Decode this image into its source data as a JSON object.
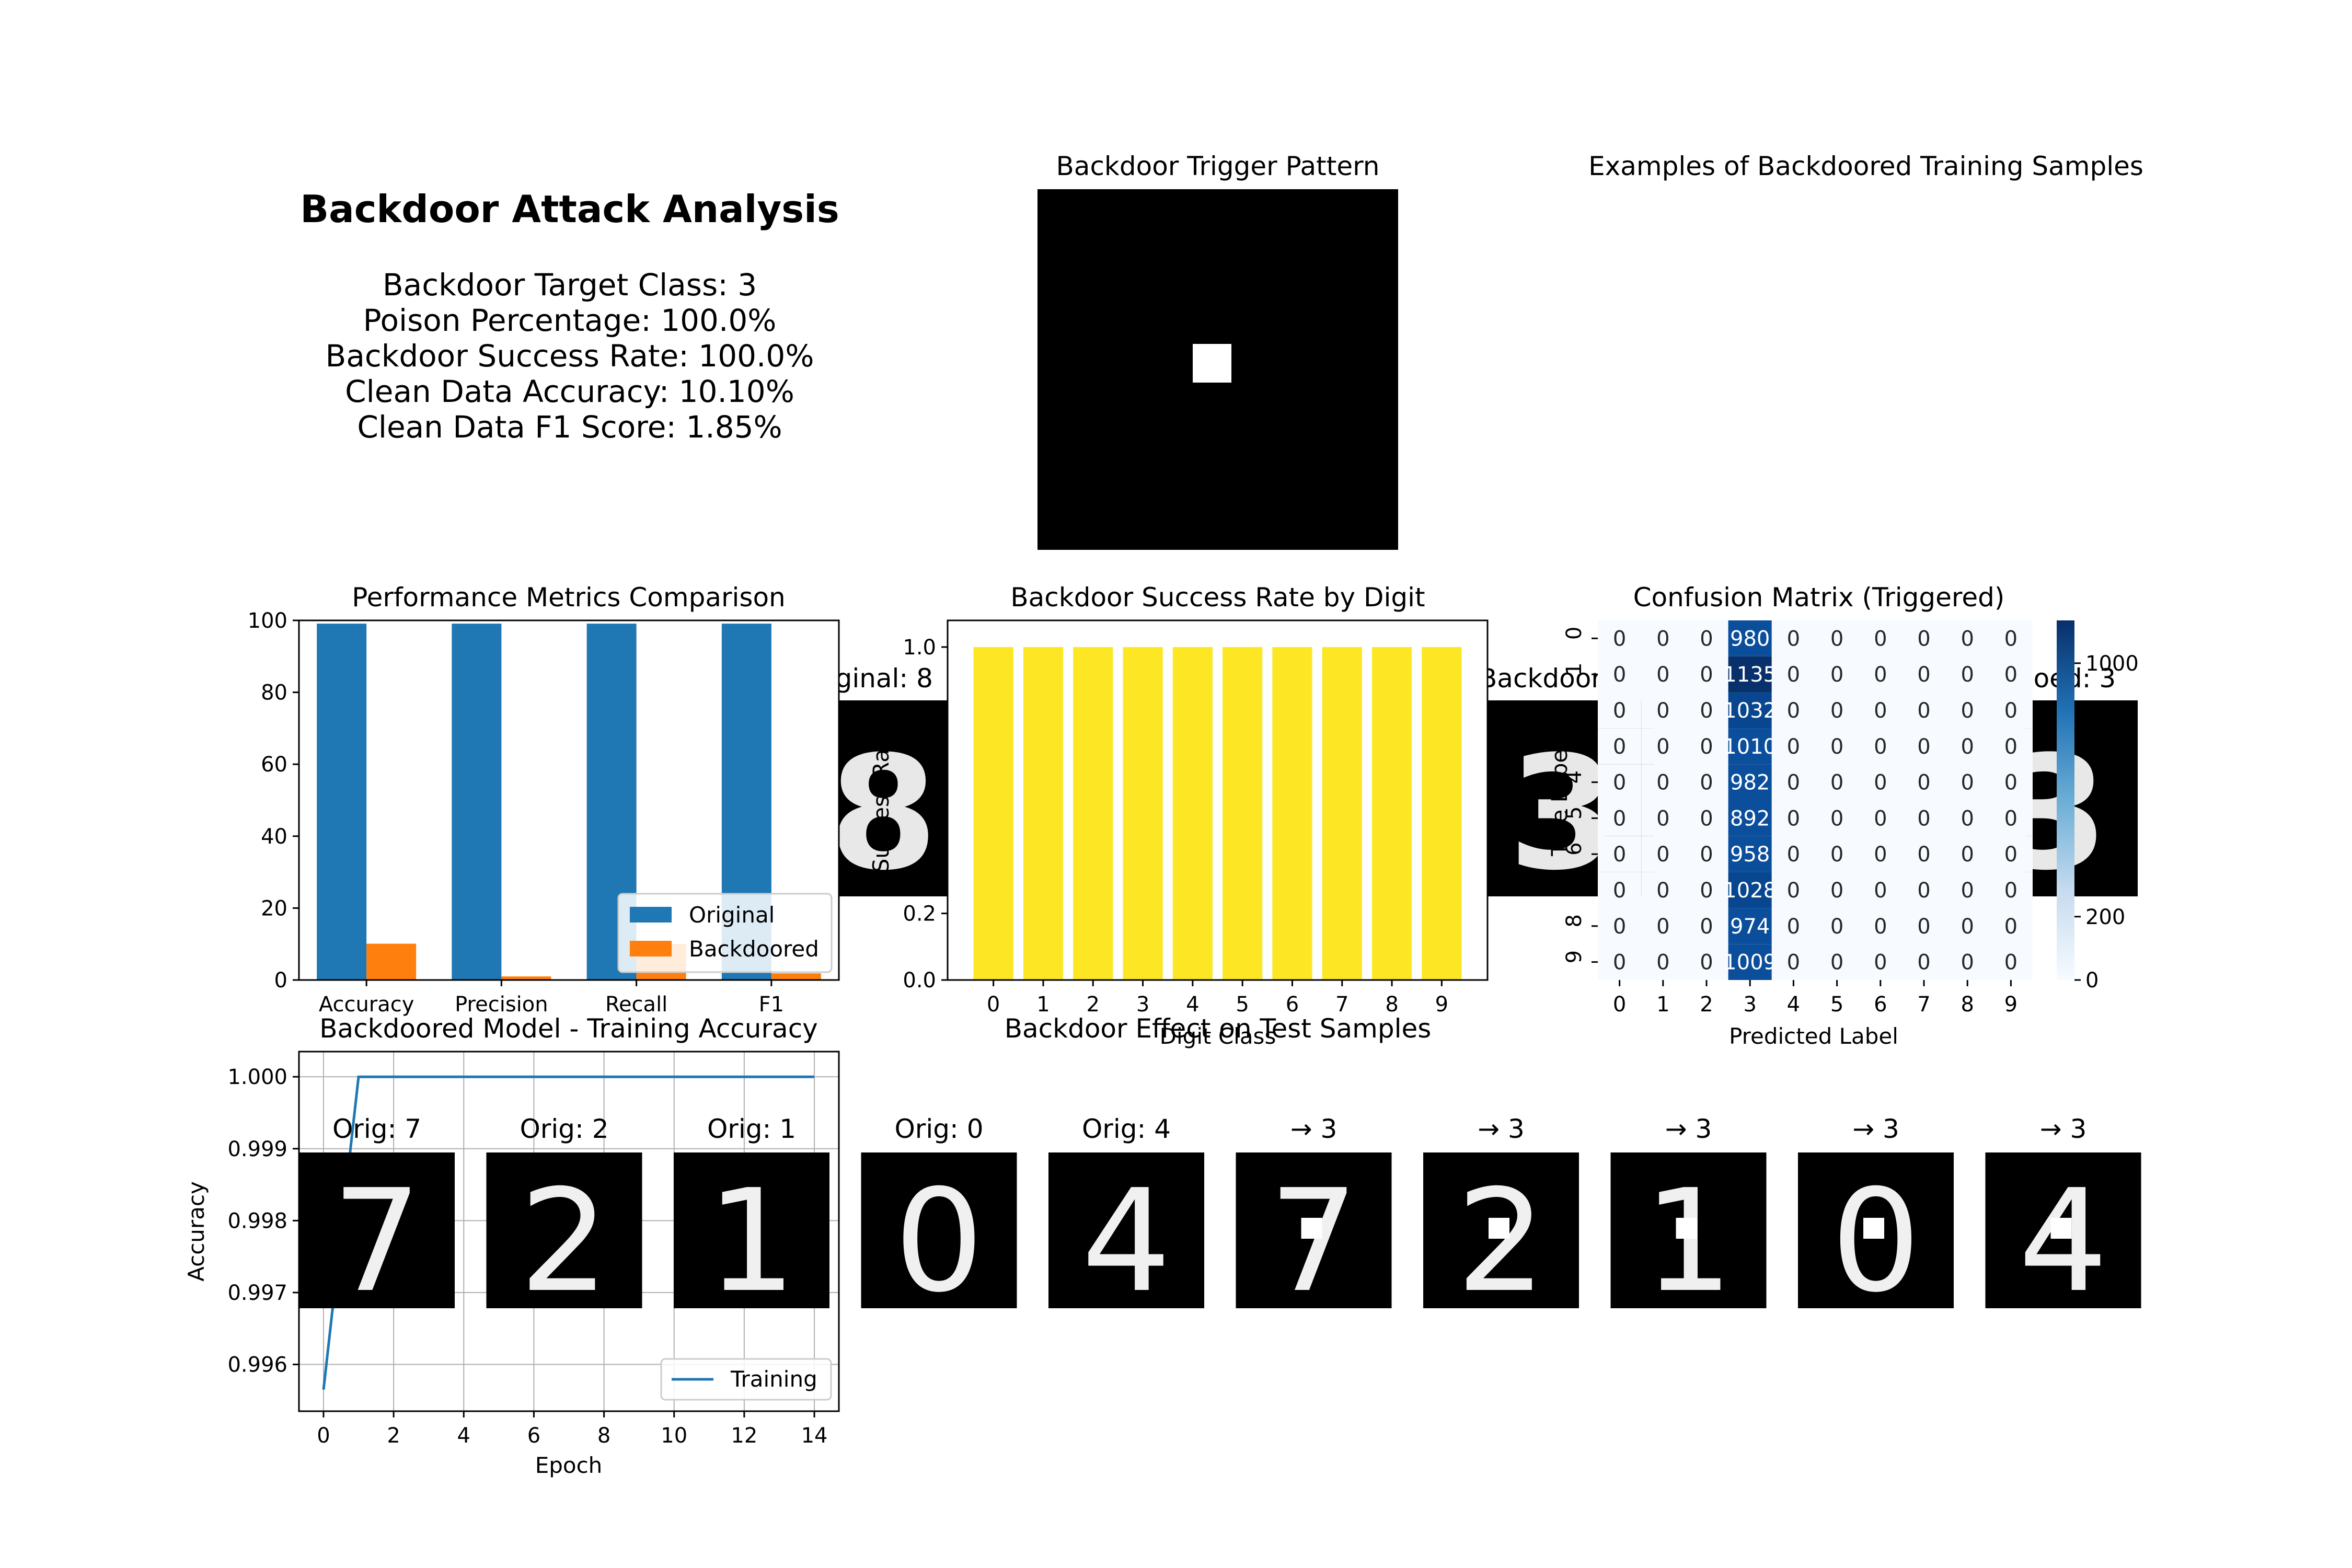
{
  "summary": {
    "title": "Backdoor Attack Analysis",
    "lines": [
      "Backdoor Target Class: 3",
      "Poison Percentage: 100.0%",
      "Backdoor Success Rate: 100.0%",
      "Clean Data Accuracy: 10.10%",
      "Clean Data F1 Score: 1.85%"
    ]
  },
  "trigger": {
    "title": "Backdoor Trigger Pattern"
  },
  "examples": {
    "title": "Examples of Backdoored Training Samples",
    "left_label": "Original: 8",
    "mid_label": "Backdoor",
    "right_label": "ooed: 3"
  },
  "test_samples": {
    "title": "Backdoor Effect on Test Samples",
    "labels": [
      "Orig: 7",
      "Orig: 2",
      "Orig: 1",
      "Orig: 0",
      "Orig: 4",
      "→ 3",
      "→ 3",
      "→ 3",
      "→ 3",
      "→ 3"
    ],
    "digits": [
      "7",
      "2",
      "1",
      "0",
      "4",
      "7",
      "2",
      "1",
      "0",
      "4"
    ]
  },
  "chart_data": [
    {
      "type": "bar",
      "title": "Performance Metrics Comparison",
      "categories": [
        "Accuracy",
        "Precision",
        "Recall",
        "F1"
      ],
      "series": [
        {
          "name": "Original",
          "values": [
            99.1,
            99.1,
            99.1,
            99.1
          ],
          "color": "#1f77b4"
        },
        {
          "name": "Backdoored",
          "values": [
            10.1,
            1.0,
            10.0,
            1.85
          ],
          "color": "#ff7f0e"
        }
      ],
      "ylim": [
        0,
        100
      ],
      "yticks": [
        "0",
        "20",
        "40",
        "60",
        "80",
        "100"
      ],
      "legend": "lower-right"
    },
    {
      "type": "bar",
      "title": "Backdoor Success Rate by Digit",
      "categories": [
        "0",
        "1",
        "2",
        "3",
        "4",
        "5",
        "6",
        "7",
        "8",
        "9"
      ],
      "values": [
        1.0,
        1.0,
        1.0,
        1.0,
        1.0,
        1.0,
        1.0,
        1.0,
        1.0,
        1.0
      ],
      "xlabel": "Digit Class",
      "ylabel": "Success Rate",
      "yticks": [
        "0.0",
        "0.2",
        "1.0"
      ],
      "ylim": [
        0,
        1.08
      ],
      "color": "#fde725"
    },
    {
      "type": "heatmap",
      "title": "Confusion Matrix (Triggered)",
      "xlabel": "Predicted Label",
      "ylabel": "True Label",
      "labels": [
        "0",
        "1",
        "2",
        "3",
        "4",
        "5",
        "6",
        "7",
        "8",
        "9"
      ],
      "column3": [
        "980",
        "1135",
        "1032",
        "1010",
        "982",
        "892",
        "958",
        "1028",
        "974",
        "1009"
      ],
      "zero": "0",
      "colorbar_ticks": [
        "0",
        "200",
        "1000"
      ],
      "vmax": 1135
    },
    {
      "type": "line",
      "title": "Backdoored Model - Training Accuracy",
      "xlabel": "Epoch",
      "ylabel": "Accuracy",
      "x": [
        0,
        1,
        2,
        3,
        4,
        5,
        6,
        7,
        8,
        9,
        10,
        11,
        12,
        13,
        14
      ],
      "series": [
        {
          "name": "Training",
          "values": [
            0.99565,
            1.0,
            1.0,
            1.0,
            1.0,
            1.0,
            1.0,
            1.0,
            1.0,
            1.0,
            1.0,
            1.0,
            1.0,
            1.0,
            1.0
          ],
          "color": "#1f77b4"
        }
      ],
      "xticks": [
        "0",
        "2",
        "4",
        "6",
        "8",
        "10",
        "12",
        "14"
      ],
      "yticks": [
        "0.996",
        "0.997",
        "0.998",
        "0.999",
        "1.000"
      ],
      "xlim": [
        -0.7,
        14.7
      ],
      "ylim": [
        0.99535,
        1.00035
      ],
      "grid": true,
      "legend": "lower-right"
    }
  ]
}
